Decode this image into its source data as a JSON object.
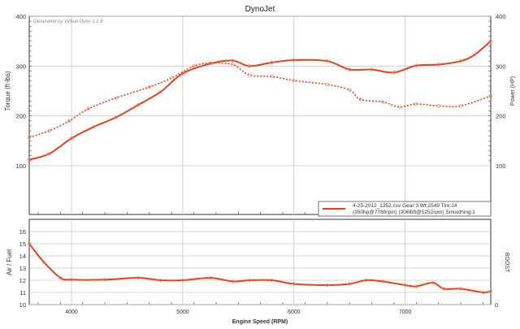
{
  "chart_data": [
    {
      "type": "line",
      "title": "DynoJet",
      "watermark": "Generated by Virtual Dyno 1.1.8",
      "xlabel": "Engine Speed (RPM)",
      "ylabel": "Torque (ft-lbs)",
      "y2label": "Power (HP)",
      "xlim": [
        3620,
        7770
      ],
      "ylim": [
        100,
        400
      ],
      "x_ticks": [
        "4000",
        "5000",
        "6000",
        "7000"
      ],
      "y_ticks": [
        "100",
        "200",
        "300",
        "400"
      ],
      "y2_ticks": [
        "100",
        "200",
        "300",
        "400"
      ],
      "grid": true,
      "legend_position": "bottom-right",
      "legend": {
        "line1": "4-25-2012_1352.csv Gear:3 Wt:2549 Tire:24",
        "line2": "(350hp@7780rpm) (306lbft@5252rpm) Smoothing:1"
      },
      "series": [
        {
          "name": "Power (HP)",
          "style": "solid",
          "x": [
            3620,
            3800,
            4000,
            4200,
            4400,
            4600,
            4800,
            5000,
            5250,
            5450,
            5600,
            5800,
            6000,
            6300,
            6500,
            6700,
            6900,
            7100,
            7300,
            7500,
            7620,
            7770
          ],
          "values": [
            112,
            124,
            155,
            178,
            197,
            222,
            248,
            285,
            305,
            311,
            300,
            307,
            312,
            310,
            293,
            293,
            287,
            301,
            303,
            310,
            322,
            350
          ]
        },
        {
          "name": "Torque (ft-lbs)",
          "style": "dotted",
          "x": [
            3620,
            3800,
            3980,
            4150,
            4400,
            4700,
            4900,
            5100,
            5250,
            5450,
            5600,
            5800,
            6000,
            6300,
            6500,
            6600,
            6800,
            6950,
            7100,
            7300,
            7500,
            7770
          ],
          "values": [
            157,
            170,
            190,
            214,
            236,
            258,
            276,
            300,
            306,
            303,
            282,
            279,
            271,
            263,
            252,
            233,
            228,
            218,
            224,
            220,
            220,
            240
          ]
        }
      ]
    },
    {
      "type": "line",
      "ylabel": "Air / Fuel",
      "y2label": "BOOST",
      "xlim": [
        3620,
        7770
      ],
      "ylim": [
        10,
        17
      ],
      "y_ticks": [
        "10",
        "11",
        "12",
        "13",
        "14",
        "15",
        "16"
      ],
      "y2_ticks": [
        "0"
      ],
      "grid": true,
      "series": [
        {
          "name": "Air / Fuel",
          "x": [
            3620,
            3750,
            3900,
            4000,
            4300,
            4600,
            4800,
            5000,
            5250,
            5450,
            5600,
            5800,
            6000,
            6300,
            6500,
            6650,
            6800,
            7000,
            7100,
            7250,
            7350,
            7500,
            7700,
            7770
          ],
          "values": [
            15.0,
            13.5,
            12.2,
            12.05,
            12.05,
            12.2,
            12.0,
            12.0,
            12.2,
            11.9,
            12.0,
            12.0,
            11.7,
            11.6,
            11.7,
            12.0,
            11.9,
            11.6,
            11.5,
            11.8,
            11.3,
            11.3,
            11.0,
            11.1
          ]
        }
      ]
    }
  ],
  "colors": {
    "line": "#e8401c",
    "grid": "#c8c8c8",
    "axis": "#333333"
  }
}
